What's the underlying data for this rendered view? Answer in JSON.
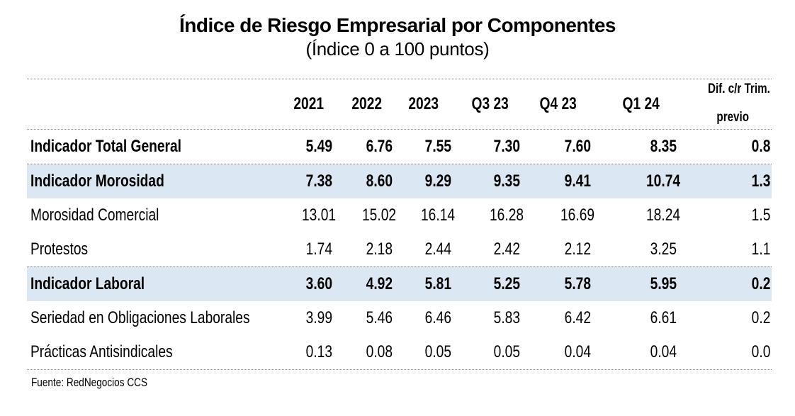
{
  "chart_data": {
    "type": "table",
    "title": "Índice de Riesgo Empresarial por Componentes",
    "subtitle": "(Índice 0 a 100 puntos)",
    "columns": [
      "2021",
      "2022",
      "2023",
      "Q3 23",
      "Q4 23",
      "Q1 24",
      "Dif. c/r Trim. previo"
    ],
    "dif_header": {
      "line1": "Dif. c/r Trim.",
      "line2": "previo"
    },
    "rows": [
      {
        "label": "Indicador Total General",
        "bold": true,
        "highlighted": false,
        "values": [
          "5.49",
          "6.76",
          "7.55",
          "7.30",
          "7.60",
          "8.35",
          "0.8"
        ]
      },
      {
        "label": "Indicador Morosidad",
        "bold": true,
        "highlighted": true,
        "values": [
          "7.38",
          "8.60",
          "9.29",
          "9.35",
          "9.41",
          "10.74",
          "1.3"
        ]
      },
      {
        "label": "Morosidad Comercial",
        "bold": false,
        "highlighted": false,
        "values": [
          "13.01",
          "15.02",
          "16.14",
          "16.28",
          "16.69",
          "18.24",
          "1.5"
        ]
      },
      {
        "label": "Protestos",
        "bold": false,
        "highlighted": false,
        "values": [
          "1.74",
          "2.18",
          "2.44",
          "2.42",
          "2.12",
          "3.25",
          "1.1"
        ]
      },
      {
        "label": "Indicador Laboral",
        "bold": true,
        "highlighted": true,
        "values": [
          "3.60",
          "4.92",
          "5.81",
          "5.25",
          "5.78",
          "5.95",
          "0.2"
        ]
      },
      {
        "label": "Seriedad en Obligaciones Laborales",
        "bold": false,
        "highlighted": false,
        "values": [
          "3.99",
          "5.46",
          "6.46",
          "5.83",
          "6.42",
          "6.61",
          "0.2"
        ]
      },
      {
        "label": "Prácticas Antisindicales",
        "bold": false,
        "highlighted": false,
        "values": [
          "0.13",
          "0.08",
          "0.05",
          "0.05",
          "0.04",
          "0.04",
          "0.0"
        ]
      }
    ],
    "source": "Fuente: RedNegocios CCS",
    "colors": {
      "highlight_row_background": "#dbe8f4",
      "rule_lines": "#828282",
      "text": "#000000"
    }
  }
}
